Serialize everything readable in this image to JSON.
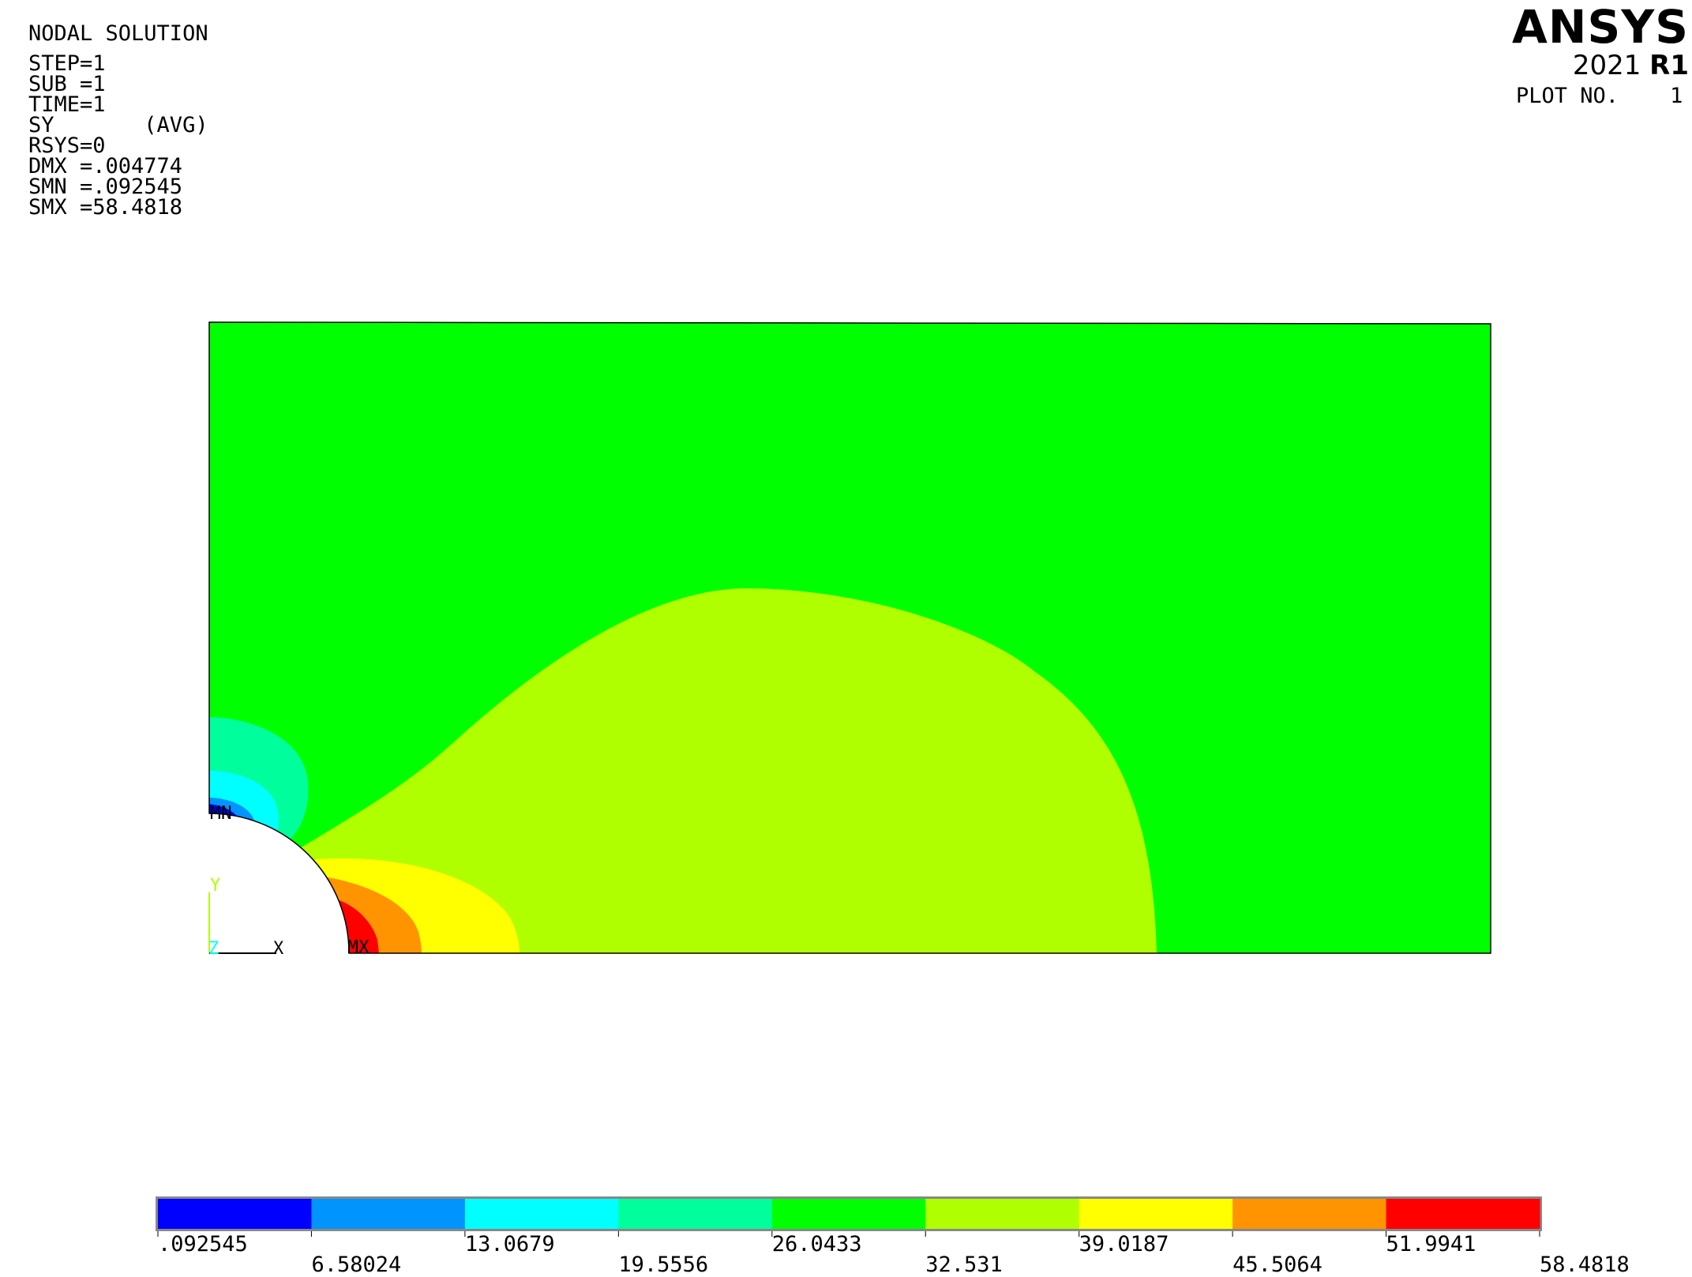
{
  "header": {
    "title": "NODAL SOLUTION",
    "lines": [
      "STEP=1",
      "SUB =1",
      "TIME=1",
      "SY       (AVG)",
      "RSYS=0",
      "DMX =.004774",
      "SMN =.092545",
      "SMX =58.4818"
    ]
  },
  "brand": {
    "name": "ANSYS",
    "version": "2021",
    "release": "R1"
  },
  "plot_number": {
    "label": "PLOT NO.",
    "value": "1"
  },
  "markers": {
    "min": "MN",
    "max": "MX"
  },
  "axes_triad": {
    "y": "Y",
    "x": "X",
    "z": "Z"
  },
  "legend": {
    "colors": [
      "#0000ff",
      "#0094ff",
      "#00ffff",
      "#00ff9c",
      "#00ff00",
      "#b0ff00",
      "#ffff00",
      "#ff9400",
      "#ff0000"
    ],
    "labels": [
      ".092545",
      "6.58024",
      "13.0679",
      "19.5556",
      "26.0433",
      "32.531",
      "39.0187",
      "45.5064",
      "51.9941",
      "58.4818"
    ]
  },
  "colors": {
    "background": "#ffffff",
    "contour_blue": "#0000ff",
    "contour_lightblue": "#0094ff",
    "contour_cyan": "#00ffff",
    "contour_teal": "#00ff9c",
    "contour_green": "#00ff00",
    "contour_yellowgreen": "#b0ff00",
    "contour_yellow": "#ffff00",
    "contour_orange": "#ff9400",
    "contour_red": "#ff0000"
  }
}
